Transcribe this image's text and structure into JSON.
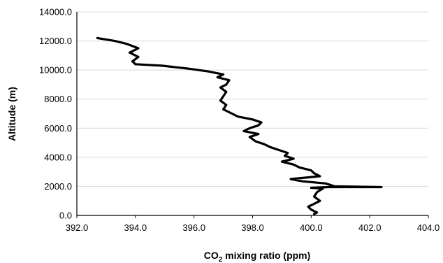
{
  "chart_data": {
    "type": "line",
    "title": "",
    "xlabel_main": "CO",
    "xlabel_sub": "2",
    "xlabel_rest": " mixing ratio (ppm)",
    "ylabel": "Altitude (m)",
    "xlim": [
      392.0,
      404.0
    ],
    "ylim": [
      0.0,
      14000.0
    ],
    "x_ticks": [
      "392.0",
      "394.0",
      "396.0",
      "398.0",
      "400.0",
      "402.0",
      "404.0"
    ],
    "y_ticks": [
      "0.0",
      "2000.0",
      "4000.0",
      "6000.0",
      "8000.0",
      "10000.0",
      "12000.0",
      "14000.0"
    ],
    "grid": "horizontal",
    "legend": "none",
    "line_color": "#000000",
    "series": [
      {
        "x": [
          400.1,
          400.2,
          400.0,
          399.9,
          400.1,
          400.3,
          400.1,
          400.2,
          400.4,
          400.0,
          400.6,
          402.4,
          400.8,
          400.5,
          399.7,
          399.3,
          399.8,
          400.3,
          400.1,
          400.0,
          399.6,
          399.4,
          399.0,
          399.4,
          399.1,
          399.2,
          398.9,
          398.6,
          398.4,
          398.1,
          397.9,
          398.2,
          397.7,
          397.9,
          398.2,
          398.3,
          398.0,
          397.5,
          397.3,
          397.0,
          397.1,
          396.9,
          397.0,
          397.1,
          396.9,
          397.1,
          397.2,
          396.8,
          397.0,
          396.5,
          395.8,
          394.9,
          394.0,
          393.9,
          394.1,
          393.8,
          394.1,
          393.7,
          393.3,
          392.7
        ],
        "y": [
          100,
          200,
          400,
          600,
          800,
          1000,
          1300,
          1600,
          1850,
          1900,
          1950,
          1950,
          2000,
          2200,
          2350,
          2500,
          2600,
          2700,
          2900,
          3100,
          3300,
          3500,
          3700,
          3900,
          4100,
          4300,
          4500,
          4700,
          4900,
          5100,
          5400,
          5600,
          5800,
          6000,
          6200,
          6400,
          6600,
          6800,
          7000,
          7300,
          7600,
          7900,
          8200,
          8500,
          8800,
          9000,
          9300,
          9500,
          9700,
          9900,
          10100,
          10300,
          10400,
          10600,
          10900,
          11200,
          11500,
          11800,
          12000,
          12200
        ]
      }
    ]
  }
}
